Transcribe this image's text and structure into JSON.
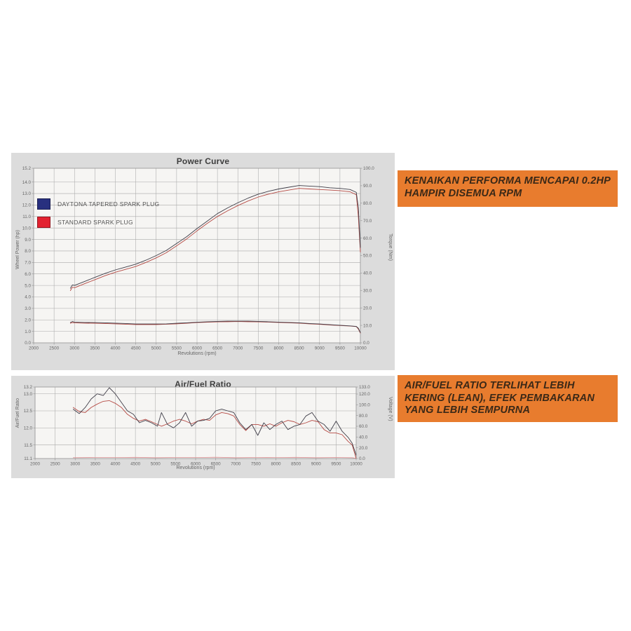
{
  "colors": {
    "chart_bg": "#dcdcdc",
    "plot_bg": "#f6f5f3",
    "grid": "#a9a9a9",
    "border": "#9a9a9a",
    "tick_text": "#666666",
    "callout_bg": "#e87c2e",
    "callout_text": "#3a2817",
    "legend_blue": "#28307f",
    "legend_red": "#e32230",
    "line_dark": "#3f3d48",
    "line_red": "#b54a44",
    "line_pink": "#de9396"
  },
  "callouts": [
    {
      "text": "KENAIKAN PERFORMA MENCAPAI 0.2HP\nHAMPIR DISEMUA RPM"
    },
    {
      "text": "AIR/FUEL RATIO TERLIHAT LEBIH\nKERING (LEAN), EFEK PEMBAKARAN\nYANG LEBIH SEMPURNA"
    }
  ],
  "chart_data": [
    {
      "type": "line",
      "title": "Power Curve",
      "xlabel": "Revolutions (rpm)",
      "ylabel": "Wheel Power (hp)",
      "ylabel_right": "Torque (Nm)",
      "xlim": [
        2000,
        10000
      ],
      "ylim_left": [
        0,
        15.2
      ],
      "ylim_right": [
        0,
        100
      ],
      "grid": true,
      "legend_position": "upper-left",
      "x_ticks": [
        "2000",
        "2500",
        "3000",
        "3500",
        "4000",
        "4500",
        "5000",
        "5500",
        "6000",
        "6500",
        "7000",
        "7500",
        "8000",
        "8500",
        "9000",
        "9500",
        "10000"
      ],
      "y_ticks_left": [
        "15.2",
        "14.0",
        "13.0",
        "12.0",
        "11.0",
        "10.0",
        "9.0",
        "8.0",
        "7.0",
        "6.0",
        "5.0",
        "4.0",
        "3.0",
        "2.0",
        "1.0",
        "0.0"
      ],
      "y_ticks_right": [
        "100.0",
        "90.0",
        "80.0",
        "70.0",
        "60.0",
        "50.0",
        "40.0",
        "30.0",
        "20.0",
        "10.0",
        "0.0"
      ],
      "legend": [
        {
          "label": "DAYTONA TAPERED SPARK PLUG",
          "color": "#28307f"
        },
        {
          "label": "STANDARD SPARK PLUG",
          "color": "#e32230"
        }
      ],
      "series": [
        {
          "name": "standard-power",
          "axis": "left",
          "color": "#b54a44",
          "width": 0.9,
          "x": [
            2900,
            2950,
            3000,
            3250,
            3500,
            3750,
            4000,
            4250,
            4500,
            4750,
            5000,
            5250,
            5500,
            5750,
            6000,
            6250,
            6500,
            6750,
            7000,
            7250,
            7500,
            7750,
            8000,
            8250,
            8500,
            8750,
            9000,
            9250,
            9500,
            9750,
            9900,
            9950,
            10000
          ],
          "y": [
            4.55,
            4.85,
            4.8,
            5.15,
            5.5,
            5.85,
            6.15,
            6.4,
            6.65,
            7.0,
            7.4,
            7.85,
            8.45,
            9.05,
            9.75,
            10.4,
            11.0,
            11.5,
            11.95,
            12.35,
            12.7,
            12.95,
            13.15,
            13.3,
            13.45,
            13.4,
            13.35,
            13.3,
            13.25,
            13.15,
            12.9,
            11.0,
            7.9
          ]
        },
        {
          "name": "daytona-power",
          "axis": "left",
          "color": "#3f3d48",
          "width": 0.9,
          "x": [
            2900,
            2950,
            3000,
            3250,
            3500,
            3750,
            4000,
            4250,
            4500,
            4750,
            5000,
            5250,
            5500,
            5750,
            6000,
            6250,
            6500,
            6750,
            7000,
            7250,
            7500,
            7750,
            8000,
            8250,
            8500,
            8750,
            9000,
            9250,
            9500,
            9750,
            9900,
            9950,
            10000
          ],
          "y": [
            4.75,
            5.05,
            5.0,
            5.35,
            5.7,
            6.05,
            6.35,
            6.6,
            6.85,
            7.2,
            7.6,
            8.05,
            8.65,
            9.25,
            9.95,
            10.6,
            11.25,
            11.75,
            12.2,
            12.6,
            12.95,
            13.2,
            13.4,
            13.55,
            13.7,
            13.65,
            13.6,
            13.5,
            13.45,
            13.35,
            13.1,
            11.8,
            8.3
          ]
        },
        {
          "name": "standard-torque",
          "axis": "right",
          "color": "#b54a44",
          "width": 0.9,
          "x": [
            2900,
            2950,
            3000,
            3250,
            3500,
            3750,
            4000,
            4250,
            4500,
            4750,
            5000,
            5250,
            5500,
            5750,
            6000,
            6250,
            6500,
            6750,
            7000,
            7250,
            7500,
            7750,
            8000,
            8250,
            8500,
            8750,
            9000,
            9250,
            9500,
            9750,
            9900,
            9950,
            10000
          ],
          "y": [
            11.2,
            11.7,
            11.4,
            11.3,
            11.2,
            11.1,
            10.9,
            10.7,
            10.5,
            10.5,
            10.5,
            10.7,
            10.9,
            11.2,
            11.6,
            11.8,
            12.0,
            12.1,
            12.2,
            12.1,
            12.0,
            11.9,
            11.7,
            11.5,
            11.3,
            10.9,
            10.6,
            10.2,
            9.9,
            9.6,
            9.3,
            7.9,
            5.6
          ]
        },
        {
          "name": "daytona-torque",
          "axis": "right",
          "color": "#3f3d48",
          "width": 0.9,
          "x": [
            2900,
            2950,
            3000,
            3250,
            3500,
            3750,
            4000,
            4250,
            4500,
            4750,
            5000,
            5250,
            5500,
            5750,
            6000,
            6250,
            6500,
            6750,
            7000,
            7250,
            7500,
            7750,
            8000,
            8250,
            8500,
            8750,
            9000,
            9250,
            9500,
            9750,
            9900,
            9950,
            10000
          ],
          "y": [
            11.7,
            12.2,
            11.9,
            11.7,
            11.6,
            11.5,
            11.3,
            11.1,
            10.8,
            10.8,
            10.8,
            10.9,
            11.2,
            11.5,
            11.8,
            12.1,
            12.3,
            12.4,
            12.4,
            12.4,
            12.3,
            12.1,
            11.9,
            11.7,
            11.5,
            11.1,
            10.8,
            10.4,
            10.1,
            9.7,
            9.4,
            8.4,
            5.9
          ]
        }
      ]
    },
    {
      "type": "line",
      "title": "Air/Fuel Ratio",
      "xlabel": "Revolutions (rpm)",
      "ylabel": "Air/Fuel Ratio",
      "ylabel_right": "Voltage (V)",
      "xlim": [
        2000,
        10000
      ],
      "ylim_left": [
        11.1,
        13.2
      ],
      "ylim_right": [
        0,
        133
      ],
      "grid": true,
      "x_ticks": [
        "2000",
        "2500",
        "3000",
        "3500",
        "4000",
        "4500",
        "5000",
        "5500",
        "6000",
        "6500",
        "7000",
        "7500",
        "8000",
        "8500",
        "9000",
        "9500",
        "10000"
      ],
      "y_ticks_left": [
        "13.2",
        "13.0",
        "12.5",
        "12.0",
        "11.5",
        "11.1"
      ],
      "y_ticks_right": [
        "133.0",
        "120.0",
        "100.0",
        "80.0",
        "60.0",
        "40.0",
        "20.0",
        "0.0"
      ],
      "legend": [],
      "series": [
        {
          "name": "voltage",
          "axis": "right",
          "color": "#de9396",
          "width": 0.8,
          "x": [
            2950,
            3500,
            4000,
            4500,
            5000,
            5500,
            6000,
            6500,
            7000,
            7500,
            8000,
            8500,
            9000,
            9500,
            9900,
            10000
          ],
          "y": [
            1.5,
            2.0,
            1.8,
            2.2,
            1.5,
            2.0,
            1.8,
            2.3,
            1.5,
            2.0,
            1.8,
            2.2,
            1.5,
            2.0,
            1.5,
            0.5
          ]
        },
        {
          "name": "standard-afr",
          "axis": "left",
          "color": "#b54a44",
          "width": 0.9,
          "x": [
            2950,
            3100,
            3250,
            3400,
            3550,
            3700,
            3850,
            4000,
            4150,
            4300,
            4450,
            4600,
            4750,
            4900,
            5050,
            5150,
            5300,
            5450,
            5600,
            5750,
            5900,
            6050,
            6200,
            6350,
            6500,
            6650,
            6800,
            6950,
            7100,
            7250,
            7400,
            7550,
            7700,
            7850,
            8000,
            8150,
            8300,
            8450,
            8600,
            8750,
            8900,
            9050,
            9200,
            9350,
            9500,
            9650,
            9800,
            9900,
            10000
          ],
          "y": [
            12.6,
            12.48,
            12.45,
            12.6,
            12.7,
            12.78,
            12.8,
            12.72,
            12.6,
            12.4,
            12.28,
            12.2,
            12.25,
            12.18,
            12.1,
            12.05,
            12.12,
            12.2,
            12.25,
            12.2,
            12.12,
            12.2,
            12.25,
            12.22,
            12.38,
            12.45,
            12.42,
            12.35,
            12.1,
            11.92,
            12.1,
            12.1,
            12.05,
            12.12,
            12.05,
            12.15,
            12.22,
            12.18,
            12.1,
            12.15,
            12.22,
            12.18,
            11.95,
            11.85,
            11.85,
            11.8,
            11.6,
            11.5,
            11.1
          ]
        },
        {
          "name": "daytona-afr",
          "axis": "left",
          "color": "#3f3d48",
          "width": 0.9,
          "x": [
            2950,
            3100,
            3250,
            3400,
            3550,
            3700,
            3850,
            4000,
            4150,
            4300,
            4450,
            4600,
            4750,
            4900,
            5050,
            5150,
            5300,
            5450,
            5600,
            5750,
            5900,
            6050,
            6200,
            6350,
            6500,
            6650,
            6800,
            6950,
            7100,
            7250,
            7400,
            7550,
            7700,
            7850,
            8000,
            8150,
            8300,
            8450,
            8600,
            8750,
            8900,
            9050,
            9200,
            9350,
            9500,
            9650,
            9800,
            9900,
            10000
          ],
          "y": [
            12.55,
            12.42,
            12.6,
            12.85,
            13.0,
            12.95,
            13.18,
            13.0,
            12.75,
            12.5,
            12.4,
            12.15,
            12.22,
            12.15,
            12.05,
            12.45,
            12.1,
            12.0,
            12.15,
            12.45,
            12.05,
            12.2,
            12.22,
            12.28,
            12.5,
            12.55,
            12.5,
            12.45,
            12.15,
            11.95,
            12.1,
            11.78,
            12.15,
            11.95,
            12.1,
            12.2,
            11.95,
            12.05,
            12.1,
            12.35,
            12.45,
            12.2,
            12.1,
            11.9,
            12.2,
            11.9,
            11.72,
            11.55,
            11.2
          ]
        }
      ]
    }
  ]
}
